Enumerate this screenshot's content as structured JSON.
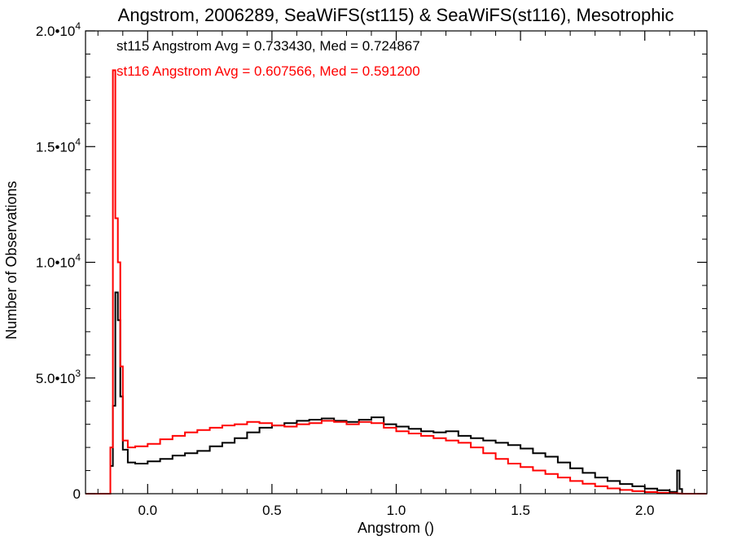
{
  "chart_data": {
    "type": "histogram-step",
    "title": "Angstrom, 2006289, SeaWiFS(st115) & SeaWiFS(st116), Mesotrophic",
    "xlabel": "Angstrom ()",
    "ylabel": "Number of Observations",
    "xlim": [
      -0.25,
      2.25
    ],
    "ylim": [
      0,
      20000
    ],
    "x_ticks": [
      {
        "value": 0.0,
        "label": "0.0"
      },
      {
        "value": 0.5,
        "label": "0.5"
      },
      {
        "value": 1.0,
        "label": "1.0"
      },
      {
        "value": 1.5,
        "label": "1.5"
      },
      {
        "value": 2.0,
        "label": "2.0"
      }
    ],
    "y_ticks": [
      {
        "value": 0,
        "mantissa": "0",
        "exp": ""
      },
      {
        "value": 5000,
        "mantissa": "5.0•10",
        "exp": "3"
      },
      {
        "value": 10000,
        "mantissa": "1.0•10",
        "exp": "4"
      },
      {
        "value": 15000,
        "mantissa": "1.5•10",
        "exp": "4"
      },
      {
        "value": 20000,
        "mantissa": "2.0•10",
        "exp": "4"
      }
    ],
    "annotations": [
      {
        "text": "st115 Angstrom Avg = 0.733430, Med = 0.724867",
        "color": "#000000"
      },
      {
        "text": "st116 Angstrom Avg = 0.607566, Med = 0.591200",
        "color": "#ff0000"
      }
    ],
    "series": [
      {
        "color": "#000000",
        "x": [
          -0.25,
          -0.16,
          -0.15,
          -0.14,
          -0.13,
          -0.12,
          -0.11,
          -0.1,
          -0.08,
          -0.05,
          0.0,
          0.05,
          0.1,
          0.15,
          0.2,
          0.25,
          0.3,
          0.35,
          0.4,
          0.45,
          0.5,
          0.55,
          0.6,
          0.65,
          0.7,
          0.75,
          0.8,
          0.85,
          0.9,
          0.95,
          1.0,
          1.05,
          1.1,
          1.15,
          1.2,
          1.25,
          1.3,
          1.35,
          1.4,
          1.45,
          1.5,
          1.55,
          1.6,
          1.65,
          1.7,
          1.75,
          1.8,
          1.85,
          1.9,
          1.95,
          2.0,
          2.05,
          2.1,
          2.13,
          2.14,
          2.15,
          2.25
        ],
        "y": [
          0,
          0,
          1200,
          3800,
          8700,
          7500,
          4200,
          1900,
          1350,
          1300,
          1400,
          1500,
          1650,
          1750,
          1850,
          2050,
          2200,
          2400,
          2650,
          2850,
          2950,
          3050,
          3150,
          3200,
          3250,
          3150,
          3100,
          3200,
          3300,
          3000,
          2900,
          2800,
          2700,
          2650,
          2700,
          2500,
          2400,
          2300,
          2200,
          2100,
          1950,
          1750,
          1600,
          1350,
          1100,
          900,
          700,
          550,
          420,
          320,
          220,
          150,
          80,
          1000,
          200,
          0,
          0
        ]
      },
      {
        "color": "#ff0000",
        "x": [
          -0.25,
          -0.16,
          -0.15,
          -0.14,
          -0.13,
          -0.12,
          -0.11,
          -0.1,
          -0.08,
          -0.05,
          0.0,
          0.05,
          0.1,
          0.15,
          0.2,
          0.25,
          0.3,
          0.35,
          0.4,
          0.45,
          0.5,
          0.55,
          0.6,
          0.65,
          0.7,
          0.75,
          0.8,
          0.85,
          0.9,
          0.95,
          1.0,
          1.05,
          1.1,
          1.15,
          1.2,
          1.25,
          1.3,
          1.35,
          1.4,
          1.45,
          1.5,
          1.55,
          1.6,
          1.65,
          1.7,
          1.75,
          1.8,
          1.85,
          1.9,
          1.95,
          2.0,
          2.05,
          2.1,
          2.13,
          2.14,
          2.15,
          2.25
        ],
        "y": [
          0,
          0,
          2000,
          18300,
          11900,
          10000,
          5500,
          2300,
          2000,
          2050,
          2150,
          2350,
          2500,
          2650,
          2750,
          2850,
          2950,
          3000,
          3100,
          3050,
          2950,
          2900,
          3000,
          3050,
          3150,
          3100,
          3000,
          3100,
          3050,
          2850,
          2700,
          2600,
          2500,
          2400,
          2300,
          2200,
          2000,
          1750,
          1500,
          1300,
          1150,
          1000,
          850,
          700,
          550,
          430,
          320,
          230,
          160,
          110,
          70,
          40,
          20,
          10,
          5,
          0,
          0
        ]
      }
    ]
  }
}
